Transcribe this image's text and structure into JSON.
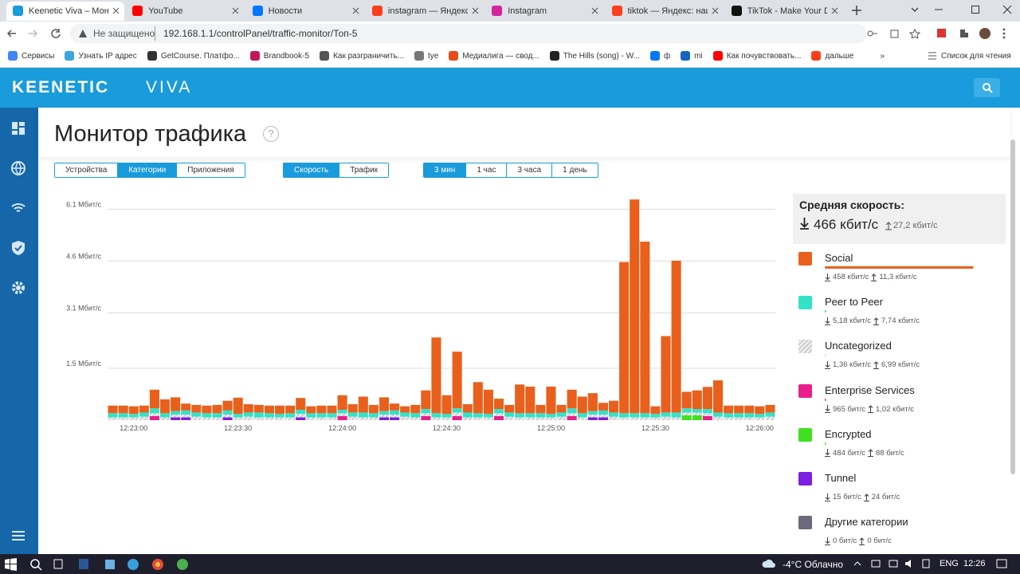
{
  "browser": {
    "tabs": [
      "Keenetic Viva – Мони",
      "YouTube",
      "Новости",
      "instagram — Яндекс:",
      "Instagram",
      "tiktok — Яндекс: наш",
      "TikTok - Make Your D"
    ],
    "url_warning": "Не защищено",
    "url": "192.168.1.1/controlPanel/traffic-monitor/Топ-5",
    "bookmarks": [
      "Сервисы",
      "Узнать IP адрес",
      "GetCourse. Платфо...",
      "Brandbook-5",
      "Как разграничить...",
      "tye",
      "Медиалига — свод...",
      "The Hills (song) - W...",
      "ф",
      "mi",
      "Как почувствовать...",
      "дальше",
      "»"
    ],
    "reading_list": "Список для чтения"
  },
  "app": {
    "brand": "KEENETIC",
    "model": "VIVA",
    "page_title": "Монитор трафика",
    "help": "?",
    "button_groups": [
      {
        "buttons": [
          "Устройства",
          "Категории",
          "Приложения"
        ],
        "active": 1
      },
      {
        "buttons": [
          "Скорость",
          "Трафик"
        ],
        "active": 0
      },
      {
        "buttons": [
          "3 мин",
          "1 час",
          "3 часа",
          "1 день"
        ],
        "active": 0
      }
    ],
    "summary": {
      "title": "Средняя скорость:",
      "down": "466 кбит/с",
      "up": "27,2 кбит/с"
    }
  },
  "chart_data": {
    "type": "bar",
    "stacked": true,
    "grid": true,
    "ylim": [
      0,
      6.5
    ],
    "yticks": [
      {
        "value": 1.5,
        "label": "1.5 Мбит/с"
      },
      {
        "value": 3.1,
        "label": "3.1 Мбит/с"
      },
      {
        "value": 4.6,
        "label": "4.6 Мбит/с"
      },
      {
        "value": 6.1,
        "label": "6.1 Мбит/с"
      }
    ],
    "categories": [
      null,
      null,
      "12:23:00",
      null,
      null,
      null,
      null,
      null,
      null,
      null,
      null,
      null,
      "12:23:30",
      null,
      null,
      null,
      null,
      null,
      null,
      null,
      null,
      null,
      "12:24:00",
      null,
      null,
      null,
      null,
      null,
      null,
      null,
      null,
      null,
      "12:24:30",
      null,
      null,
      null,
      null,
      null,
      null,
      null,
      null,
      null,
      "12:25:00",
      null,
      null,
      null,
      null,
      null,
      null,
      null,
      null,
      null,
      "12:25:30",
      null,
      null,
      null,
      null,
      null,
      null,
      null,
      null,
      null,
      "12:26:00",
      null
    ],
    "series": [
      {
        "name": "Social",
        "color": "#e8601c",
        "down": "458 кбит/с",
        "up": "11,3 кбит/с",
        "share": 98.3,
        "values": [
          0.22,
          0.22,
          0.22,
          0.2,
          0.54,
          0.4,
          0.4,
          0.2,
          0.22,
          0.22,
          0.24,
          0.28,
          0.47,
          0.24,
          0.22,
          0.22,
          0.24,
          0.22,
          0.34,
          0.2,
          0.22,
          0.22,
          0.42,
          0.24,
          0.46,
          0.24,
          0.4,
          0.2,
          0.18,
          0.24,
          0.54,
          2.19,
          0.54,
          1.64,
          0.24,
          0.9,
          0.7,
          0.3,
          0.22,
          0.83,
          0.77,
          0.24,
          0.79,
          0.22,
          0.54,
          0.48,
          0.52,
          0.22,
          0.34,
          4.37,
          6.18,
          4.96,
          0.22,
          2.21,
          4.39,
          0.48,
          0.54,
          0.64,
          0.93,
          0.22,
          0.22,
          0.22,
          0.22,
          0.22
        ]
      },
      {
        "name": "Peer to Peer",
        "color": "#33e3c8",
        "down": "5,18 кбит/с",
        "up": "7,74 кбит/с",
        "share": 1.1,
        "values": [
          0.12,
          0.12,
          0.1,
          0.12,
          0.14,
          0.12,
          0.1,
          0.12,
          0.12,
          0.12,
          0.12,
          0.12,
          0.1,
          0.12,
          0.14,
          0.12,
          0.1,
          0.12,
          0.12,
          0.12,
          0.12,
          0.12,
          0.1,
          0.12,
          0.14,
          0.12,
          0.1,
          0.12,
          0.12,
          0.12,
          0.12,
          0.12,
          0.1,
          0.12,
          0.14,
          0.12,
          0.1,
          0.12,
          0.12,
          0.12,
          0.12,
          0.12,
          0.1,
          0.12,
          0.14,
          0.12,
          0.1,
          0.12,
          0.12,
          0.12,
          0.12,
          0.12,
          0.1,
          0.12,
          0.14,
          0.12,
          0.1,
          0.12,
          0.12,
          0.12,
          0.12,
          0.12,
          0.1,
          0.12
        ]
      },
      {
        "name": "Uncategorized",
        "color": "#cfcfcf",
        "pattern": "hatch",
        "down": "1,36 кбит/с",
        "up": "6,99 кбит/с",
        "share": 0.3,
        "values": [
          0.08,
          0.08,
          0.08,
          0.1,
          0.08,
          0.08,
          0.08,
          0.08,
          0.1,
          0.08,
          0.08,
          0.08,
          0.08,
          0.1,
          0.08,
          0.08,
          0.08,
          0.08,
          0.1,
          0.08,
          0.08,
          0.08,
          0.08,
          0.1,
          0.08,
          0.08,
          0.08,
          0.08,
          0.1,
          0.08,
          0.08,
          0.08,
          0.08,
          0.1,
          0.08,
          0.08,
          0.08,
          0.08,
          0.1,
          0.08,
          0.08,
          0.08,
          0.08,
          0.1,
          0.08,
          0.08,
          0.08,
          0.08,
          0.1,
          0.08,
          0.08,
          0.08,
          0.08,
          0.1,
          0.08,
          0.08,
          0.08,
          0.08,
          0.1,
          0.08,
          0.08,
          0.08,
          0.08,
          0.1
        ]
      },
      {
        "name": "Enterprise Services",
        "color": "#e91e8c",
        "down": "965 бит/с",
        "up": "1,02 кбит/с",
        "share": 0.2,
        "values": [
          0,
          0,
          0,
          0,
          0.12,
          0,
          0,
          0,
          0,
          0,
          0,
          0,
          0,
          0,
          0,
          0,
          0,
          0,
          0,
          0,
          0,
          0,
          0.12,
          0,
          0,
          0,
          0,
          0,
          0,
          0,
          0.12,
          0,
          0,
          0.12,
          0,
          0,
          0,
          0.12,
          0,
          0,
          0,
          0,
          0,
          0,
          0.12,
          0,
          0,
          0,
          0,
          0,
          0,
          0,
          0,
          0,
          0,
          0,
          0,
          0.12,
          0,
          0,
          0,
          0,
          0,
          0
        ]
      },
      {
        "name": "Encrypted",
        "color": "#3fe020",
        "down": "484 бит/с",
        "up": "88 бит/с",
        "share": 0.1,
        "values": [
          0,
          0,
          0,
          0,
          0,
          0,
          0,
          0,
          0,
          0,
          0,
          0,
          0,
          0,
          0,
          0,
          0,
          0,
          0,
          0,
          0,
          0,
          0,
          0,
          0,
          0,
          0,
          0,
          0,
          0,
          0,
          0,
          0,
          0,
          0,
          0,
          0,
          0,
          0,
          0,
          0,
          0,
          0,
          0,
          0,
          0,
          0,
          0,
          0,
          0,
          0,
          0,
          0,
          0,
          0,
          0.14,
          0.14,
          0,
          0,
          0,
          0,
          0,
          0,
          0
        ]
      },
      {
        "name": "Tunnel",
        "color": "#7b1fe0",
        "down": "15 бит/с",
        "up": "24 бит/с",
        "share": 0,
        "values": [
          0,
          0,
          0,
          0,
          0,
          0,
          0.08,
          0.08,
          0,
          0,
          0,
          0.08,
          0,
          0,
          0,
          0,
          0,
          0,
          0.08,
          0,
          0,
          0,
          0,
          0,
          0,
          0,
          0.08,
          0.08,
          0,
          0,
          0,
          0,
          0,
          0,
          0,
          0,
          0,
          0,
          0,
          0,
          0,
          0,
          0,
          0,
          0,
          0,
          0.08,
          0.08,
          0,
          0,
          0,
          0,
          0,
          0,
          0,
          0,
          0,
          0,
          0,
          0,
          0,
          0,
          0,
          0
        ]
      },
      {
        "name": "Другие категории",
        "color": "#6b6a7a",
        "down": "0 бит/с",
        "up": "0 бит/с",
        "share": 0,
        "values": [
          0,
          0,
          0,
          0,
          0,
          0,
          0,
          0,
          0,
          0,
          0,
          0,
          0,
          0,
          0,
          0,
          0,
          0,
          0,
          0,
          0,
          0,
          0,
          0,
          0,
          0,
          0,
          0,
          0,
          0,
          0,
          0,
          0,
          0,
          0,
          0,
          0,
          0,
          0,
          0,
          0,
          0,
          0,
          0,
          0,
          0,
          0,
          0,
          0,
          0,
          0,
          0,
          0,
          0,
          0,
          0,
          0,
          0,
          0,
          0,
          0,
          0,
          0,
          0
        ]
      }
    ]
  },
  "taskbar": {
    "weather": "-4°C Облачно",
    "lang": "ENG",
    "time": "12:26"
  }
}
